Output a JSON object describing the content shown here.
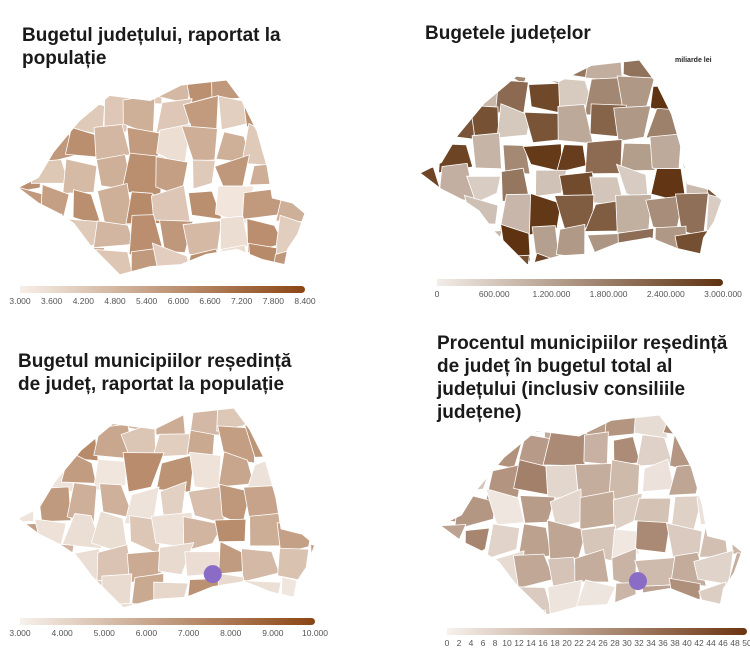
{
  "panels": [
    {
      "title": "Bugetul județului, raportat la populație",
      "legend_ticks": [
        "3.000",
        "3.600",
        "4.200",
        "4.800",
        "5.400",
        "6.000",
        "6.600",
        "7.200",
        "7.800",
        "8.400"
      ],
      "color_low": "#f7efe8",
      "color_high": "#8b4513"
    },
    {
      "title": "Bugetele județelor",
      "unit": "miliarde lei",
      "legend_ticks": [
        "0",
        "600.000",
        "1.200.000",
        "1.800.000",
        "2.400.000",
        "3.000.000"
      ],
      "color_low": "#f3ede8",
      "color_high": "#5e3210"
    },
    {
      "title": "Bugetul municipiilor reședință de județ, raportat la populație",
      "legend_ticks": [
        "3.000",
        "4.000",
        "5.000",
        "6.000",
        "7.000",
        "8.000",
        "9.000",
        "10.000"
      ],
      "color_low": "#f7f1ec",
      "color_high": "#8b4513",
      "highlight_color": "#8a6cc7"
    },
    {
      "title": "Procentul municipiilor reședință de județ în bugetul total al județului (inclusiv consiliile județene)",
      "legend_ticks": [
        "0",
        "2",
        "4",
        "6",
        "8",
        "10",
        "12",
        "14",
        "16",
        "18",
        "20",
        "22",
        "24",
        "26",
        "28",
        "30",
        "32",
        "34",
        "36",
        "38",
        "40",
        "42",
        "44",
        "46",
        "48",
        "50"
      ],
      "color_low": "#f7f1ec",
      "color_high": "#6b3410",
      "highlight_color": "#8a6cc7"
    }
  ]
}
